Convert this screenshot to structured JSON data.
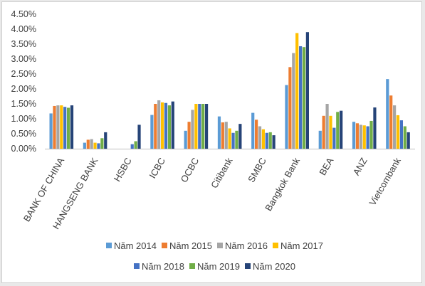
{
  "chart_data": {
    "type": "bar",
    "categories": [
      "BANK OF CHINA",
      "HANGSENG BANK",
      "HSBC",
      "ICBC",
      "OCBC",
      "Citibank",
      "SMBC",
      "Bangkok Bank",
      "BEA",
      "ANZ",
      "Vietcombank"
    ],
    "ylim": [
      0,
      0.045
    ],
    "y_ticks": [
      "0.00%",
      "0.50%",
      "1.00%",
      "1.50%",
      "2.00%",
      "2.50%",
      "3.00%",
      "3.50%",
      "4.00%",
      "4.50%"
    ],
    "grid": false,
    "legend_position": "bottom",
    "series": [
      {
        "name": "Năm 2014",
        "color": "#5b9bd5",
        "values": [
          0.0118,
          0.002,
          0,
          0.0113,
          0.006,
          0.0108,
          0.012,
          0.0213,
          0.006,
          0.009,
          0.0233
        ]
      },
      {
        "name": "Năm 2015",
        "color": "#ed7d31",
        "values": [
          0.0143,
          0.003,
          0,
          0.015,
          0.009,
          0.0088,
          0.0097,
          0.0273,
          0.011,
          0.0085,
          0.0178
        ]
      },
      {
        "name": "Năm 2016",
        "color": "#a5a5a5",
        "values": [
          0.0145,
          0.0032,
          0,
          0.0162,
          0.013,
          0.009,
          0.0075,
          0.032,
          0.015,
          0.008,
          0.0145
        ]
      },
      {
        "name": "Năm 2017",
        "color": "#ffc000",
        "values": [
          0.0145,
          0.002,
          0,
          0.0155,
          0.015,
          0.0068,
          0.0065,
          0.0387,
          0.011,
          0.0078,
          0.0112
        ]
      },
      {
        "name": "Năm 2018",
        "color": "#4472c4",
        "values": [
          0.014,
          0.0018,
          0.0015,
          0.0153,
          0.015,
          0.0053,
          0.0053,
          0.0343,
          0.007,
          0.0075,
          0.0095
        ]
      },
      {
        "name": "Năm 2019",
        "color": "#70ad47",
        "values": [
          0.0137,
          0.0035,
          0.0025,
          0.0145,
          0.015,
          0.006,
          0.0055,
          0.034,
          0.0123,
          0.0093,
          0.0075
        ]
      },
      {
        "name": "Năm 2020",
        "color": "#264478",
        "values": [
          0.0145,
          0.0055,
          0.008,
          0.0158,
          0.015,
          0.0083,
          0.0045,
          0.039,
          0.0127,
          0.0138,
          0.0055
        ]
      }
    ]
  }
}
